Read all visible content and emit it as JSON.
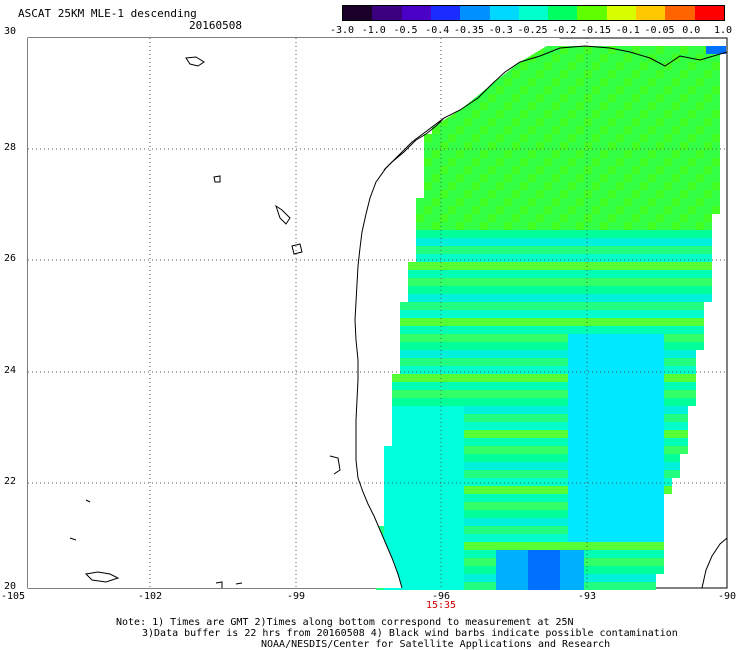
{
  "header": {
    "title": "ASCAT 25KM MLE-1 descending",
    "date": "20160508"
  },
  "colorbar": {
    "labels": [
      "-3.0",
      "-1.0",
      "-0.5",
      "-0.4",
      "-0.35",
      "-0.3",
      "-0.25",
      "-0.2",
      "-0.15",
      "-0.1",
      "-0.05",
      "0.0",
      "1.0"
    ],
    "colors": [
      "#1a0028",
      "#3a0080",
      "#4b00c8",
      "#1a2cff",
      "#0090ff",
      "#00d8ff",
      "#00ffcc",
      "#00ff60",
      "#60ff00",
      "#d8ff00",
      "#ffc800",
      "#ff6400",
      "#ff0000"
    ]
  },
  "map": {
    "lat_labels": [
      "30",
      "28",
      "26",
      "24",
      "22",
      "20"
    ],
    "lon_labels": [
      "-105",
      "-102",
      "-99",
      "-96",
      "-93",
      "-90"
    ],
    "pass_time": "15:35"
  },
  "notes": {
    "line1": "Note: 1) Times are GMT 2)Times along bottom correspond to measurement at 25N",
    "line2": "3)Data buffer is 22 hrs from 20160508 4) Black wind barbs indicate possible contamination",
    "line3": "NOAA/NESDIS/Center for Satellite Applications and Research"
  }
}
